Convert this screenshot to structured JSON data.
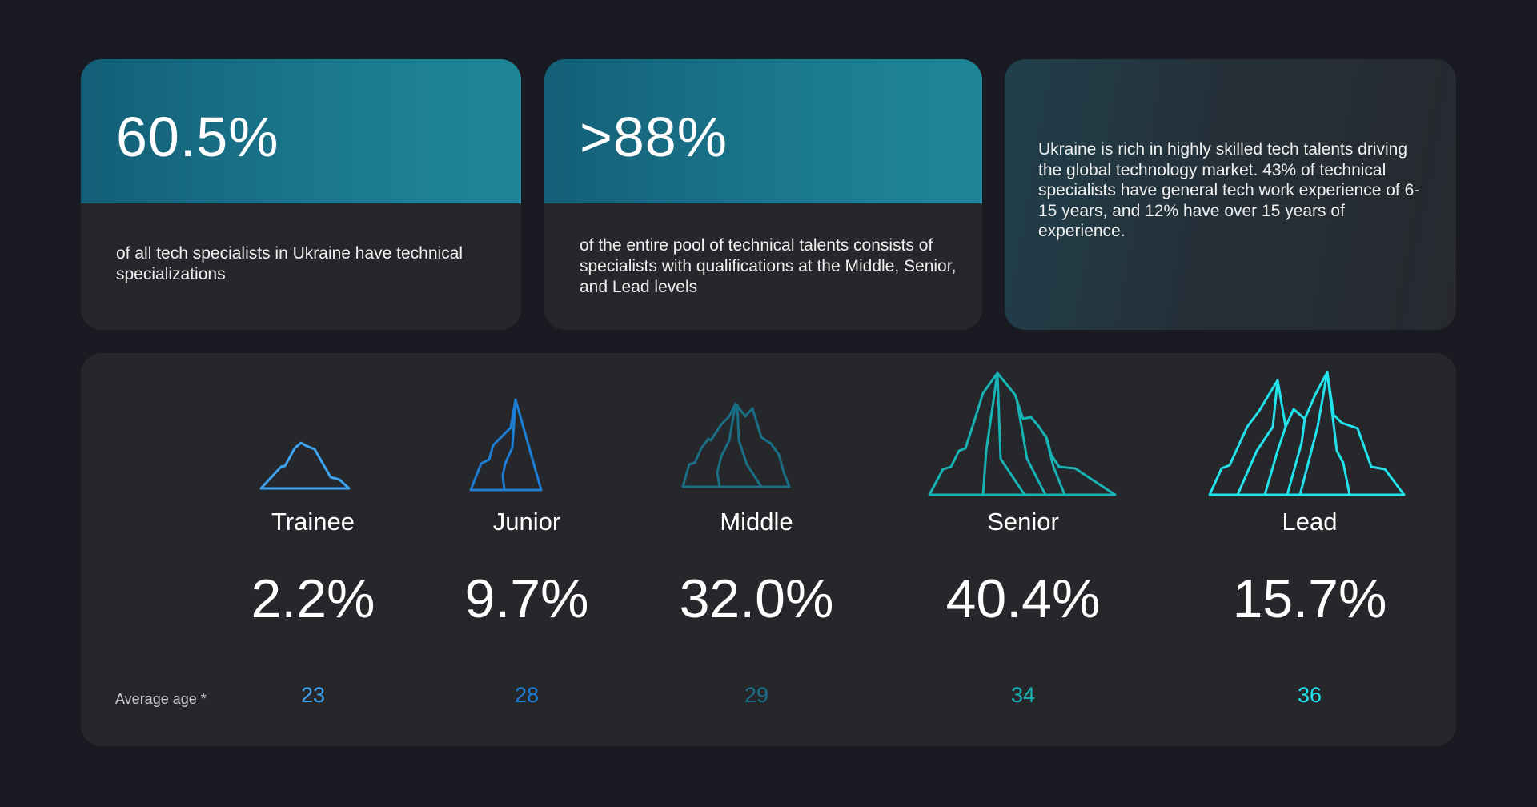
{
  "stats": [
    {
      "value": "60.5%",
      "caption": "of all tech specialists in Ukraine have technical specializations"
    },
    {
      "value": ">88%",
      "caption": "of the entire pool of technical talents consists of specialists with qualifications at the Middle, Senior, and Lead levels"
    }
  ],
  "note": "Ukraine is rich in highly skilled tech talents driving the global technology market. 43% of technical specialists have general tech work experience of 6-15 years, and 12% have over 15 years of experience.",
  "age_label": "Average age *",
  "colors": {
    "background": "#191a22",
    "card": "#26272b",
    "stat_head": "#1c7a8f",
    "trainee": "#3fa4f2",
    "junior": "#1c7ed6",
    "middle": "#1a6f86",
    "senior": "#18b3b5",
    "lead": "#22e3ec"
  },
  "chart_data": {
    "type": "table",
    "categories": [
      "Trainee",
      "Junior",
      "Middle",
      "Senior",
      "Lead"
    ],
    "series": [
      {
        "values": [
          "2.2%",
          "9.7%",
          "32.0%",
          "40.4%",
          "15.7%"
        ]
      },
      {
        "name": "Average age *",
        "values": [
          "23",
          "28",
          "29",
          "34",
          "36"
        ]
      }
    ],
    "icons": [
      "mountain-1-peak-icon",
      "mountain-2-peak-icon",
      "mountain-3-peak-icon",
      "mountain-4-peak-icon",
      "mountain-5-peak-icon"
    ]
  }
}
